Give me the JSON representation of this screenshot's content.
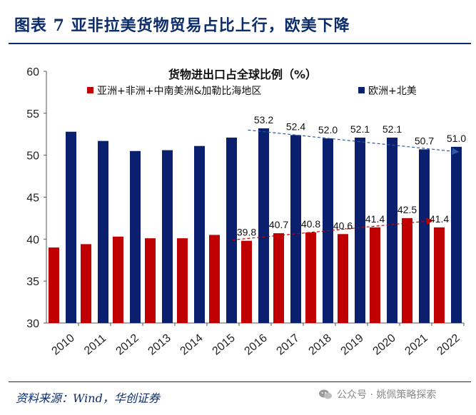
{
  "header": {
    "title": "图表 7   亚非拉美货物贸易占比上行，欧美下降"
  },
  "footer": {
    "source": "资料来源：Wind，华创证券",
    "watermark": "公众号 · 姚佩策略探索"
  },
  "chart_data": {
    "type": "bar",
    "title": "货物进出口占全球比例（%）",
    "categories": [
      "2010",
      "2011",
      "2012",
      "2013",
      "2014",
      "2015",
      "2016",
      "2017",
      "2018",
      "2019",
      "2020",
      "2021",
      "2022"
    ],
    "ylim": [
      30,
      60
    ],
    "yticks": [
      30,
      35,
      40,
      45,
      50,
      55,
      60
    ],
    "series": [
      {
        "name": "亚洲+非洲+中南美洲&加勒比海地区",
        "color": "#c00000",
        "values": [
          39.0,
          39.4,
          40.3,
          40.1,
          40.1,
          40.5,
          39.8,
          40.7,
          40.8,
          40.6,
          41.4,
          42.5,
          41.4
        ],
        "labels": [
          "",
          "",
          "",
          "",
          "",
          "",
          "39.8",
          "40.7",
          "40.8",
          "40.6",
          "41.4",
          "42.5",
          "41.4"
        ]
      },
      {
        "name": "欧洲+北美",
        "color": "#0a1f6e",
        "values": [
          52.8,
          51.7,
          50.5,
          50.6,
          51.1,
          52.1,
          53.2,
          52.4,
          52.0,
          52.1,
          52.1,
          50.7,
          51.0
        ],
        "labels": [
          "",
          "",
          "",
          "",
          "",
          "",
          "53.2",
          "52.4",
          "52.0",
          "52.1",
          "52.1",
          "50.7",
          "51.0"
        ]
      }
    ],
    "trend_lines": [
      {
        "series": "亚洲+非洲+中南美洲&加勒比海地区",
        "from": "2016",
        "to": "2022",
        "y_from": 39.9,
        "y_to": 42.2,
        "color": "#c00000"
      },
      {
        "series": "欧洲+北美",
        "from": "2016",
        "to": "2022",
        "y_from": 53.0,
        "y_to": 50.4,
        "color": "#2a5aa8"
      }
    ]
  }
}
